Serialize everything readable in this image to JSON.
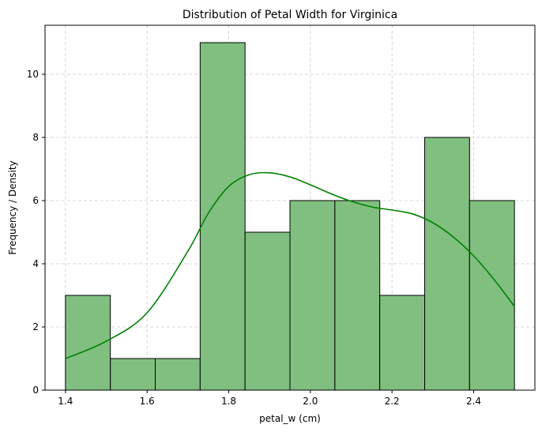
{
  "chart_data": {
    "type": "bar",
    "title": "Distribution of Petal Width for Virginica",
    "xlabel": "petal_w (cm)",
    "ylabel": "Frequency / Density",
    "bin_edges": [
      1.4,
      1.51,
      1.62,
      1.73,
      1.84,
      1.95,
      2.06,
      2.17,
      2.28,
      2.39,
      2.5
    ],
    "values": [
      3,
      1,
      1,
      11,
      5,
      6,
      6,
      3,
      8,
      6
    ],
    "kde": {
      "x": [
        1.4,
        1.5,
        1.6,
        1.7,
        1.75,
        1.8,
        1.85,
        1.9,
        1.95,
        2.0,
        2.05,
        2.1,
        2.15,
        2.2,
        2.25,
        2.3,
        2.35,
        2.4,
        2.45,
        2.5
      ],
      "y": [
        1.0,
        1.55,
        2.45,
        4.4,
        5.6,
        6.45,
        6.82,
        6.88,
        6.75,
        6.5,
        6.22,
        5.98,
        5.8,
        5.7,
        5.58,
        5.3,
        4.85,
        4.25,
        3.5,
        2.65
      ]
    },
    "xlim": [
      1.35,
      2.55
    ],
    "ylim": [
      0,
      11.55
    ],
    "xticks": [
      1.4,
      1.6,
      1.8,
      2.0,
      2.2,
      2.4
    ],
    "xtick_labels": [
      "1.4",
      "1.6",
      "1.8",
      "2.0",
      "2.2",
      "2.4"
    ],
    "yticks": [
      0,
      2,
      4,
      6,
      8,
      10
    ],
    "ytick_labels": [
      "0",
      "2",
      "4",
      "6",
      "8",
      "10"
    ],
    "grid": true,
    "colors": {
      "bar_fill": "#80bf80",
      "bar_edge": "#000000",
      "kde_line": "#008000",
      "grid": "#cccccc"
    }
  }
}
